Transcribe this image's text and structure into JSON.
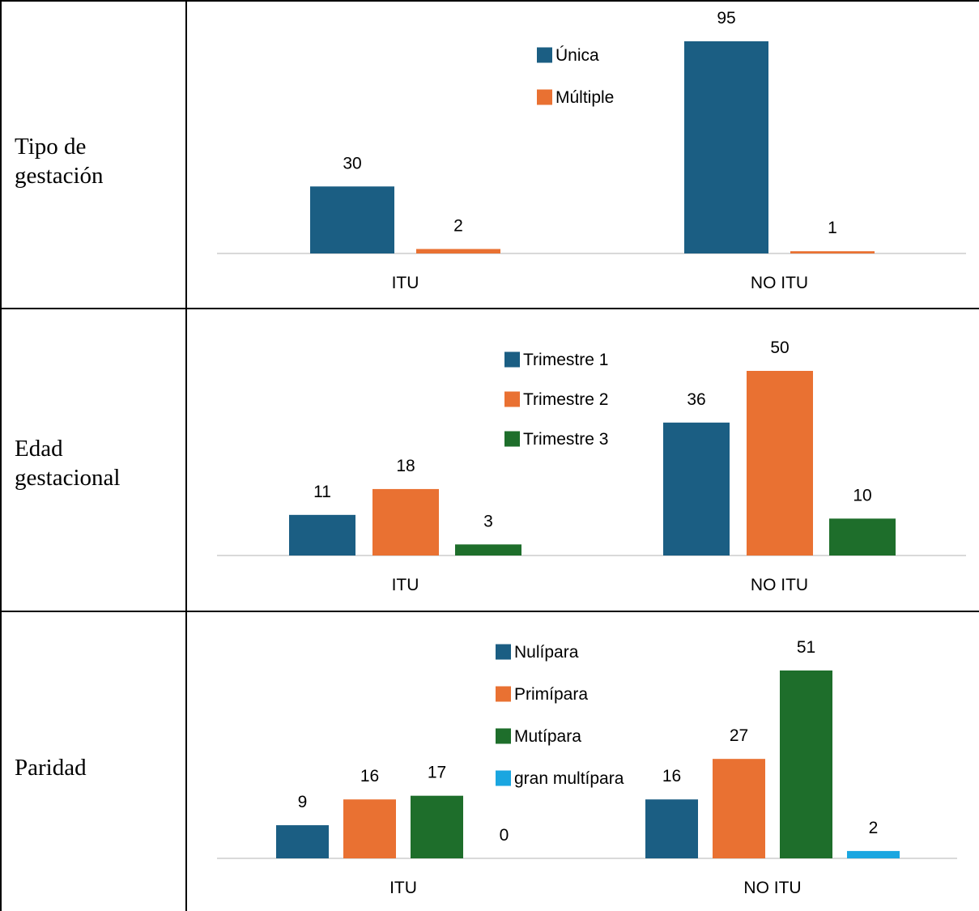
{
  "rows": [
    {
      "label": "Tipo de gestación"
    },
    {
      "label": "Edad gestacional"
    },
    {
      "label": "Paridad"
    }
  ],
  "colors": {
    "blue": "#1b5e83",
    "orange": "#e97132",
    "green": "#1e6e2b",
    "cyan": "#1aa6e0",
    "axis": "#d9d9d9",
    "text": "#000000"
  },
  "chart_data": [
    {
      "type": "bar",
      "categories": [
        "ITU",
        "NO ITU"
      ],
      "series": [
        {
          "name": "Única",
          "values": [
            30,
            95
          ],
          "color": "#1b5e83"
        },
        {
          "name": "Múltiple",
          "values": [
            2,
            1
          ],
          "color": "#e97132"
        }
      ],
      "data_labels": true,
      "legend": "top-center",
      "ylim": [
        0,
        95
      ]
    },
    {
      "type": "bar",
      "categories": [
        "ITU",
        "NO ITU"
      ],
      "series": [
        {
          "name": "Trimestre 1",
          "values": [
            11,
            36
          ],
          "color": "#1b5e83"
        },
        {
          "name": "Trimestre 2",
          "values": [
            18,
            50
          ],
          "color": "#e97132"
        },
        {
          "name": "Trimestre 3",
          "values": [
            3,
            10
          ],
          "color": "#1e6e2b"
        }
      ],
      "data_labels": true,
      "legend": "top-center",
      "ylim": [
        0,
        50
      ]
    },
    {
      "type": "bar",
      "categories": [
        "ITU",
        "NO ITU"
      ],
      "series": [
        {
          "name": "Nulípara",
          "values": [
            9,
            16
          ],
          "color": "#1b5e83"
        },
        {
          "name": "Primípara",
          "values": [
            16,
            27
          ],
          "color": "#e97132"
        },
        {
          "name": "Mutípara",
          "values": [
            17,
            51
          ],
          "color": "#1e6e2b"
        },
        {
          "name": "gran multípara",
          "values": [
            0,
            2
          ],
          "color": "#1aa6e0"
        }
      ],
      "data_labels": true,
      "legend": "top-center",
      "ylim": [
        0,
        51
      ]
    }
  ]
}
